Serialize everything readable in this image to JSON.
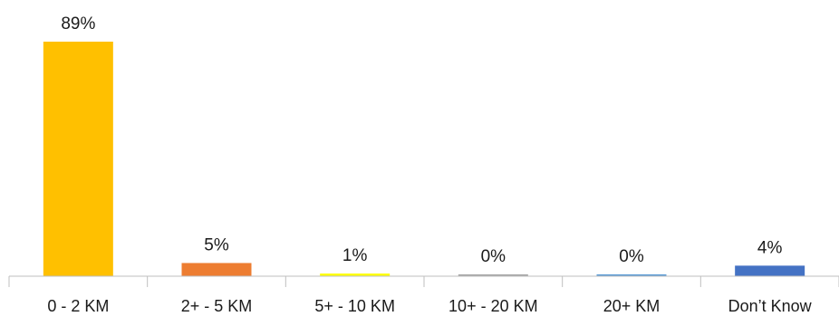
{
  "chart_data": {
    "type": "bar",
    "categories": [
      "0 - 2 KM",
      "2+ - 5 KM",
      "5+ - 10 KM",
      "10+ - 20 KM",
      "20+ KM",
      "Don’t Know"
    ],
    "values": [
      89,
      5,
      1,
      0,
      0,
      4
    ],
    "data_labels": [
      "89%",
      "5%",
      "1%",
      "0%",
      "0%",
      "4%"
    ],
    "colors": [
      "#FFC000",
      "#ED7D31",
      "#FFFF00",
      "#A5A5A5",
      "#5B9BD5",
      "#4472C4"
    ],
    "ylim": [
      0,
      100
    ],
    "grid": false,
    "legend": "none"
  }
}
